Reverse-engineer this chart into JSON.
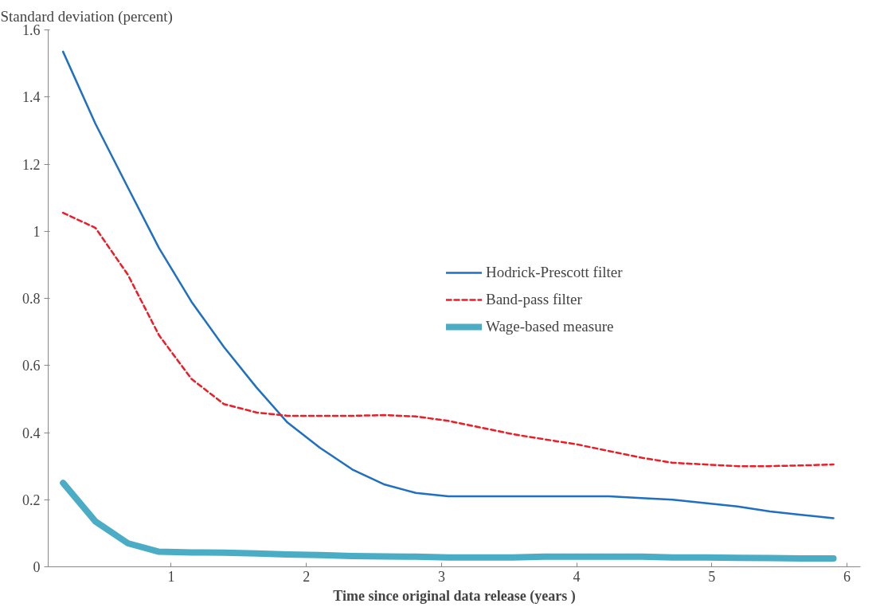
{
  "chart_data": {
    "type": "line",
    "xlabel": "Time since original data release (years )",
    "ylabel": "Standard deviation (percent)",
    "x": [
      0.2,
      0.44,
      0.68,
      0.91,
      1.15,
      1.39,
      1.63,
      1.86,
      2.1,
      2.34,
      2.58,
      2.81,
      3.05,
      3.29,
      3.53,
      3.76,
      4.0,
      4.24,
      4.48,
      4.71,
      4.95,
      5.19,
      5.43,
      5.66,
      5.9
    ],
    "series": [
      {
        "name": "Hodrick-Prescott filter",
        "color": "#1f6fc5",
        "line_style": "solid",
        "values": [
          1.535,
          1.32,
          1.13,
          0.95,
          0.79,
          0.655,
          0.535,
          0.43,
          0.355,
          0.29,
          0.245,
          0.22,
          0.21,
          0.21,
          0.21,
          0.21,
          0.21,
          0.21,
          0.205,
          0.2,
          0.19,
          0.18,
          0.165,
          0.155,
          0.145
        ]
      },
      {
        "name": "Band-pass filter",
        "color": "#ee1c25",
        "line_style": "dashed",
        "values": [
          1.055,
          1.01,
          0.87,
          0.69,
          0.56,
          0.485,
          0.46,
          0.45,
          0.45,
          0.45,
          0.452,
          0.448,
          0.435,
          0.415,
          0.395,
          0.38,
          0.365,
          0.345,
          0.325,
          0.31,
          0.305,
          0.3,
          0.3,
          0.302,
          0.305
        ]
      },
      {
        "name": "Wage-based measure",
        "color": "#4bacc6",
        "line_style": "solid",
        "values": [
          0.25,
          0.135,
          0.07,
          0.045,
          0.043,
          0.042,
          0.04,
          0.037,
          0.035,
          0.032,
          0.031,
          0.03,
          0.028,
          0.028,
          0.028,
          0.03,
          0.03,
          0.03,
          0.03,
          0.028,
          0.028,
          0.027,
          0.026,
          0.025,
          0.025
        ]
      }
    ],
    "xlim": [
      0.09,
      6.1
    ],
    "xticks": [
      1,
      2,
      3,
      4,
      5,
      6
    ],
    "ylim": [
      0,
      1.6
    ],
    "yticks": [
      0,
      0.2,
      0.4,
      0.6,
      0.8,
      1,
      1.2,
      1.4,
      1.6
    ],
    "grid": false,
    "legend": "right",
    "marker": "none"
  }
}
